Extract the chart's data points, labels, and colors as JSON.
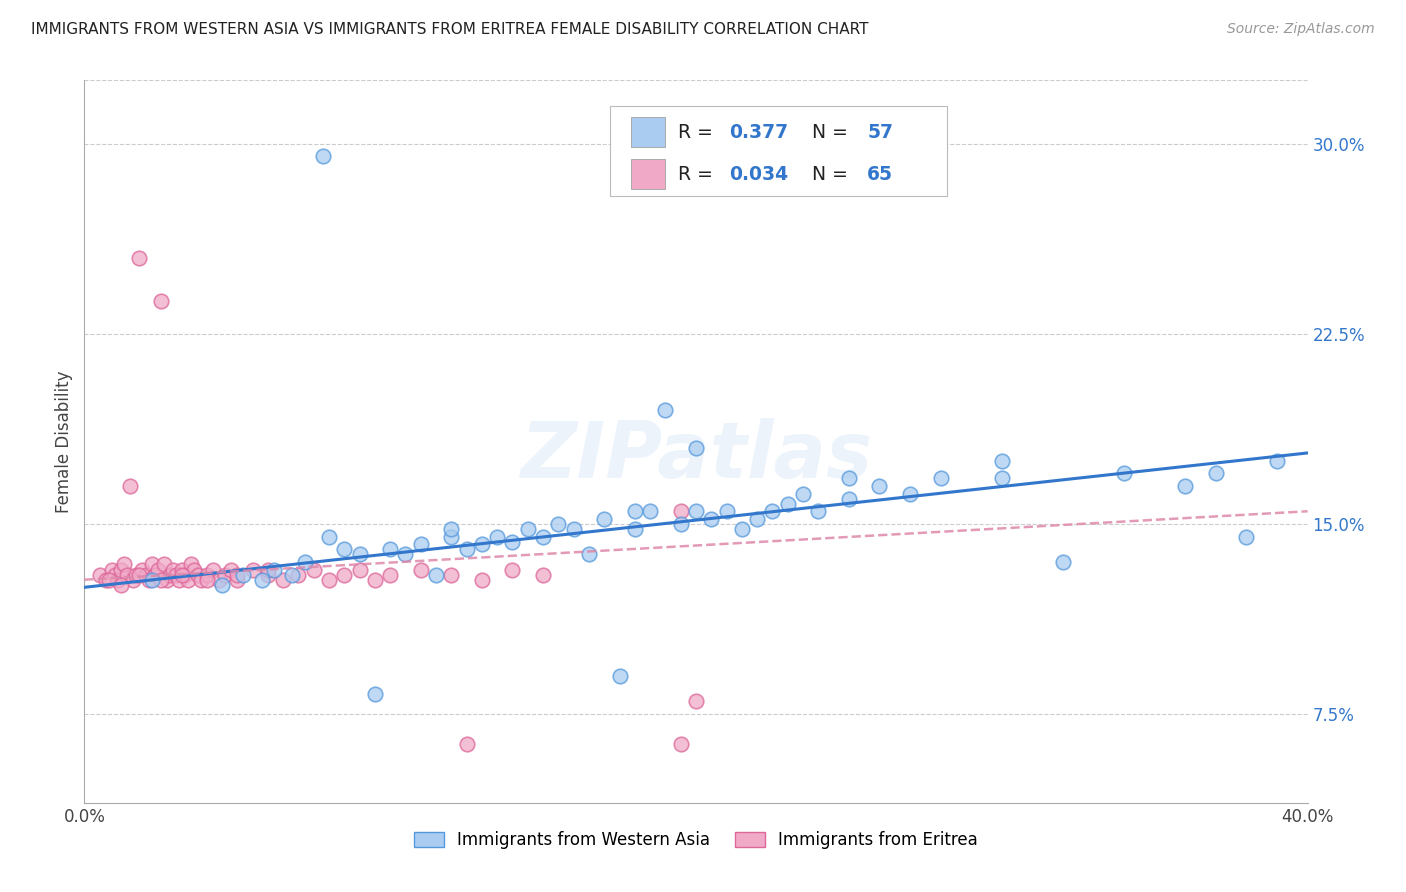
{
  "title": "IMMIGRANTS FROM WESTERN ASIA VS IMMIGRANTS FROM ERITREA FEMALE DISABILITY CORRELATION CHART",
  "source": "Source: ZipAtlas.com",
  "ylabel": "Female Disability",
  "legend_label1": "Immigrants from Western Asia",
  "legend_label2": "Immigrants from Eritrea",
  "R1": 0.377,
  "N1": 57,
  "R2": 0.034,
  "N2": 65,
  "color1": "#aaccf0",
  "color2": "#f0aac8",
  "edge_color1": "#5599dd",
  "edge_color2": "#dd6699",
  "line_color1": "#3377cc",
  "line_color2": "#dd88aa",
  "xlim": [
    0.0,
    0.4
  ],
  "ylim": [
    0.04,
    0.325
  ],
  "ytick_vals": [
    0.075,
    0.15,
    0.225,
    0.3
  ],
  "ytick_labels": [
    "7.5%",
    "15.0%",
    "22.5%",
    "30.0%"
  ],
  "watermark": "ZIPatlas",
  "blue_x": [
    0.022,
    0.045,
    0.052,
    0.058,
    0.062,
    0.068,
    0.072,
    0.078,
    0.085,
    0.09,
    0.095,
    0.1,
    0.105,
    0.11,
    0.115,
    0.12,
    0.125,
    0.13,
    0.135,
    0.14,
    0.145,
    0.15,
    0.155,
    0.16,
    0.165,
    0.17,
    0.175,
    0.18,
    0.185,
    0.19,
    0.195,
    0.2,
    0.205,
    0.21,
    0.215,
    0.22,
    0.225,
    0.23,
    0.235,
    0.24,
    0.25,
    0.26,
    0.27,
    0.28,
    0.3,
    0.32,
    0.34,
    0.36,
    0.37,
    0.38,
    0.39,
    0.2,
    0.25,
    0.3,
    0.18,
    0.12,
    0.08
  ],
  "blue_y": [
    0.128,
    0.126,
    0.13,
    0.128,
    0.132,
    0.13,
    0.135,
    0.295,
    0.14,
    0.138,
    0.083,
    0.14,
    0.138,
    0.142,
    0.13,
    0.145,
    0.14,
    0.142,
    0.145,
    0.143,
    0.148,
    0.145,
    0.15,
    0.148,
    0.138,
    0.152,
    0.09,
    0.148,
    0.155,
    0.195,
    0.15,
    0.155,
    0.152,
    0.155,
    0.148,
    0.152,
    0.155,
    0.158,
    0.162,
    0.155,
    0.16,
    0.165,
    0.162,
    0.168,
    0.168,
    0.135,
    0.17,
    0.165,
    0.17,
    0.145,
    0.175,
    0.18,
    0.168,
    0.175,
    0.155,
    0.148,
    0.145
  ],
  "pink_x": [
    0.005,
    0.007,
    0.009,
    0.01,
    0.011,
    0.012,
    0.013,
    0.014,
    0.015,
    0.016,
    0.017,
    0.018,
    0.019,
    0.02,
    0.021,
    0.022,
    0.023,
    0.024,
    0.025,
    0.026,
    0.027,
    0.028,
    0.029,
    0.03,
    0.031,
    0.032,
    0.033,
    0.034,
    0.035,
    0.036,
    0.037,
    0.038,
    0.04,
    0.042,
    0.044,
    0.046,
    0.048,
    0.05,
    0.055,
    0.06,
    0.065,
    0.07,
    0.075,
    0.08,
    0.085,
    0.09,
    0.095,
    0.1,
    0.11,
    0.12,
    0.13,
    0.14,
    0.15,
    0.008,
    0.012,
    0.018,
    0.025,
    0.032,
    0.04,
    0.05,
    0.06,
    0.125,
    0.195,
    0.195,
    0.2
  ],
  "pink_y": [
    0.13,
    0.128,
    0.132,
    0.13,
    0.128,
    0.132,
    0.134,
    0.13,
    0.165,
    0.128,
    0.13,
    0.255,
    0.132,
    0.13,
    0.128,
    0.134,
    0.13,
    0.132,
    0.238,
    0.134,
    0.128,
    0.13,
    0.132,
    0.13,
    0.128,
    0.132,
    0.13,
    0.128,
    0.134,
    0.132,
    0.13,
    0.128,
    0.13,
    0.132,
    0.128,
    0.13,
    0.132,
    0.128,
    0.132,
    0.13,
    0.128,
    0.13,
    0.132,
    0.128,
    0.13,
    0.132,
    0.128,
    0.13,
    0.132,
    0.13,
    0.128,
    0.132,
    0.13,
    0.128,
    0.126,
    0.13,
    0.128,
    0.13,
    0.128,
    0.13,
    0.132,
    0.063,
    0.063,
    0.155,
    0.08
  ]
}
